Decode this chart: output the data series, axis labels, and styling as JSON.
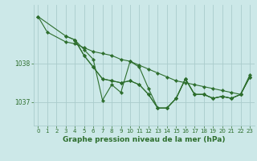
{
  "background_color": "#cce8e8",
  "grid_color": "#aacccc",
  "line_color": "#2d6e2d",
  "marker_color": "#2d6e2d",
  "title": "Graphe pression niveau de la mer (hPa)",
  "title_fontsize": 6.5,
  "tick_fontsize": 5.5,
  "xlim": [
    -0.5,
    23.5
  ],
  "ylim": [
    1036.4,
    1039.5
  ],
  "yticks": [
    1037,
    1038
  ],
  "xticks": [
    0,
    1,
    2,
    3,
    4,
    5,
    6,
    7,
    8,
    9,
    10,
    11,
    12,
    13,
    14,
    15,
    16,
    17,
    18,
    19,
    20,
    21,
    22,
    23
  ],
  "series": [
    {
      "x": [
        0,
        1,
        3,
        4,
        5,
        6,
        7,
        8,
        9,
        10,
        11,
        12,
        13,
        14,
        15,
        16,
        17,
        18,
        19,
        20,
        21,
        22,
        23
      ],
      "y": [
        1039.2,
        1038.8,
        1038.55,
        1038.5,
        1038.4,
        1038.3,
        1038.25,
        1038.2,
        1038.1,
        1038.05,
        1037.95,
        1037.85,
        1037.75,
        1037.65,
        1037.55,
        1037.5,
        1037.45,
        1037.4,
        1037.35,
        1037.3,
        1037.25,
        1037.2,
        1037.7
      ]
    },
    {
      "x": [
        0,
        3,
        4,
        5,
        6,
        7,
        8,
        9,
        10,
        11,
        12,
        13,
        14,
        15,
        16,
        17,
        18,
        19,
        20,
        21,
        22,
        23
      ],
      "y": [
        1039.2,
        1038.7,
        1038.6,
        1038.35,
        1038.1,
        1037.05,
        1037.45,
        1037.25,
        1038.05,
        1037.9,
        1037.35,
        1036.85,
        1036.85,
        1037.1,
        1037.6,
        1037.2,
        1037.2,
        1037.1,
        1037.15,
        1037.1,
        1037.2,
        1037.65
      ]
    },
    {
      "x": [
        3,
        4,
        5,
        6,
        7,
        8,
        9,
        10,
        11,
        12,
        13,
        14,
        15,
        16,
        17,
        18,
        19,
        20,
        21,
        22,
        23
      ],
      "y": [
        1038.7,
        1038.6,
        1038.2,
        1037.9,
        1037.6,
        1037.55,
        1037.5,
        1037.55,
        1037.45,
        1037.2,
        1036.85,
        1036.85,
        1037.1,
        1037.6,
        1037.2,
        1037.2,
        1037.1,
        1037.15,
        1037.1,
        1037.2,
        1037.65
      ]
    },
    {
      "x": [
        4,
        5,
        6,
        7,
        8,
        9,
        10,
        11,
        12,
        13,
        14,
        15,
        16,
        17,
        18,
        19,
        20,
        21,
        22,
        23
      ],
      "y": [
        1038.6,
        1038.2,
        1037.9,
        1037.6,
        1037.55,
        1037.5,
        1037.55,
        1037.45,
        1037.2,
        1036.85,
        1036.85,
        1037.1,
        1037.6,
        1037.2,
        1037.2,
        1037.1,
        1037.15,
        1037.1,
        1037.2,
        1037.65
      ]
    }
  ]
}
